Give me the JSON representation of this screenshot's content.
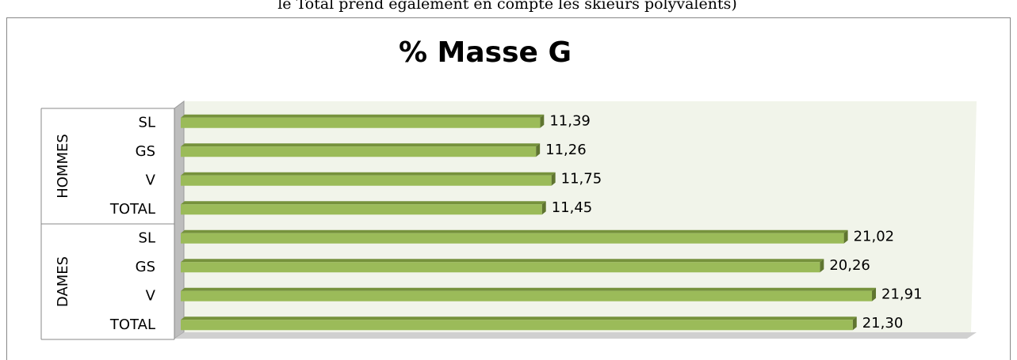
{
  "caption": "le Total prend également en compte les skieurs polyvalents)",
  "chart_data": {
    "type": "bar",
    "orientation": "horizontal",
    "title": "% Masse G",
    "groups": [
      {
        "name": "HOMMES",
        "categories": [
          "SL",
          "GS",
          "V",
          "TOTAL"
        ],
        "values": [
          11.39,
          11.26,
          11.75,
          11.45
        ],
        "value_labels": [
          "11,39",
          "11,26",
          "11,75",
          "11,45"
        ]
      },
      {
        "name": "DAMES",
        "categories": [
          "SL",
          "GS",
          "V",
          "TOTAL"
        ],
        "values": [
          21.02,
          20.26,
          21.91,
          21.3
        ],
        "value_labels": [
          "21,02",
          "20,26",
          "21,91",
          "21,30"
        ]
      }
    ],
    "color": "#9bbb59",
    "xlim": [
      0,
      25
    ]
  }
}
